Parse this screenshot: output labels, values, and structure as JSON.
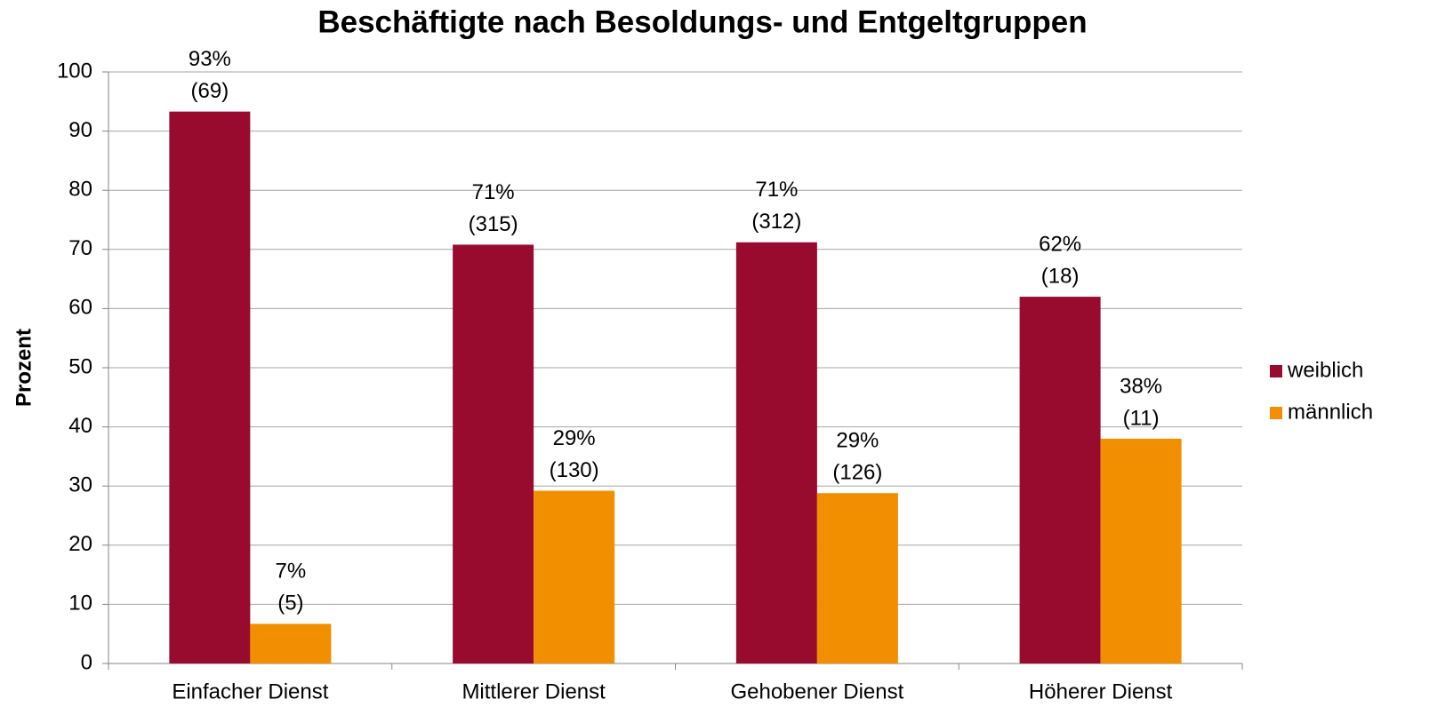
{
  "chart_data": {
    "type": "bar",
    "title": "Beschäftigte nach Besoldungs- und Entgeltgruppen",
    "y_label": "Prozent",
    "categories": [
      "Einfacher Dienst",
      "Mittlerer Dienst",
      "Gehobener Dienst",
      "Höherer Dienst"
    ],
    "series": [
      {
        "name": "weiblich",
        "color": "#990b2e",
        "values": [
          93.3,
          70.8,
          71.2,
          62
        ],
        "value_labels": [
          "93%",
          "71%",
          "71%",
          "62%"
        ],
        "count_labels": [
          "(69)",
          "(315)",
          "(312)",
          "(18)"
        ]
      },
      {
        "name": "männlich",
        "color": "#f18f00",
        "values": [
          6.7,
          29.2,
          28.8,
          38
        ],
        "value_labels": [
          "7%",
          "29%",
          "29%",
          "38%"
        ],
        "count_labels": [
          "(5)",
          "(130)",
          "(126)",
          "(11)"
        ]
      }
    ],
    "ylim": [
      0,
      100
    ],
    "yticks": [
      0,
      10,
      20,
      30,
      40,
      50,
      60,
      70,
      80,
      90,
      100
    ],
    "grid": true,
    "legend": "right"
  }
}
